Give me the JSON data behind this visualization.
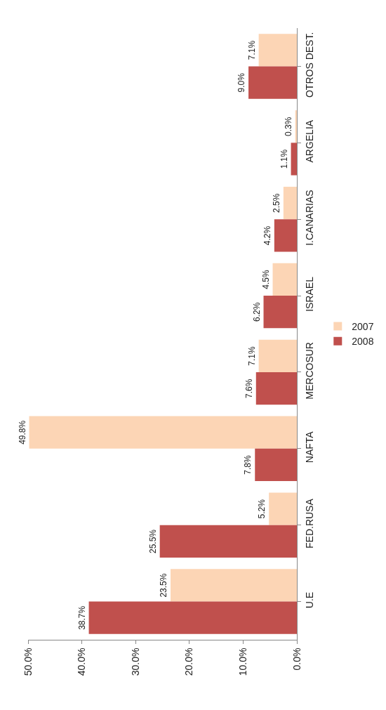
{
  "chart_data": {
    "type": "bar",
    "orientation": "horizontal",
    "categories": [
      "OTROS DEST.",
      "ARGELIA",
      "I.CANARIAS",
      "ISRAEL",
      "MERCOSUR",
      "NAFTA",
      "FED.RUSA",
      "U.E"
    ],
    "series": [
      {
        "name": "2007",
        "color": "#fcd5b5",
        "values": [
          7.1,
          0.3,
          2.5,
          4.5,
          7.1,
          49.8,
          5.2,
          23.5
        ],
        "value_labels": [
          "7.1%",
          "0.3%",
          "2.5%",
          "4.5%",
          "7.1%",
          "49.8%",
          "5.2%",
          "23.5%"
        ]
      },
      {
        "name": "2008",
        "color": "#c0504d",
        "values": [
          9.0,
          1.1,
          4.2,
          6.2,
          7.6,
          7.8,
          25.5,
          38.7
        ],
        "value_labels": [
          "9.0%",
          "1.1%",
          "4.2%",
          "6.2%",
          "7.6%",
          "7.8%",
          "25.5%",
          "38.7%"
        ]
      }
    ],
    "xlim": [
      50,
      0
    ],
    "xticks": [
      {
        "value": 50,
        "label": "50.0%"
      },
      {
        "value": 40,
        "label": "40.0%"
      },
      {
        "value": 30,
        "label": "30.0%"
      },
      {
        "value": 20,
        "label": "20.0%"
      },
      {
        "value": 10,
        "label": "10.0%"
      },
      {
        "value": 0,
        "label": "0.0%"
      }
    ],
    "grid": false,
    "legend": "right"
  }
}
